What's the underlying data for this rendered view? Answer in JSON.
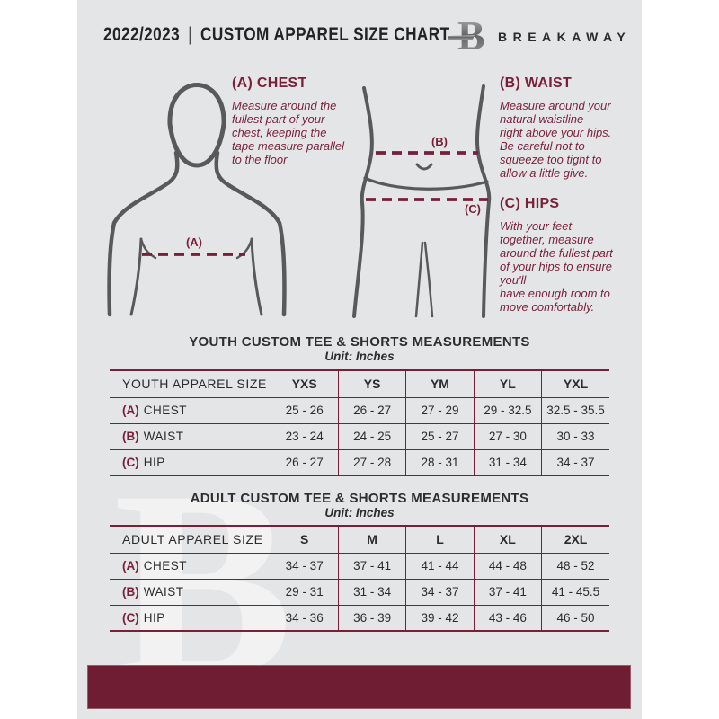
{
  "header": {
    "year": "2022/2023",
    "separator": "|",
    "title": "CUSTOM APPAREL SIZE CHART",
    "brand": "BREAKAWAY",
    "logo_letter": "B"
  },
  "instructions": {
    "chest": {
      "heading": "(A) CHEST",
      "body": "Measure around the\nfullest part of your\nchest, keeping the\ntape measure parallel\nto the floor"
    },
    "waist": {
      "heading": "(B) WAIST",
      "body": "Measure around your\nnatural waistline –\nright above your hips.\nBe careful not to\nsqueeze too tight to\nallow a little give."
    },
    "hips": {
      "heading": "(C) HIPS",
      "body": "With your feet\ntogether, measure\naround the fullest part\nof your hips to ensure\nyou'll\nhave enough room to\nmove comfortably."
    },
    "label_a": "(A)",
    "label_b": "(B)",
    "label_c": "(C)"
  },
  "youth_table": {
    "title": "YOUTH CUSTOM TEE & SHORTS MEASUREMENTS",
    "unit": "Unit: Inches",
    "header": [
      "YOUTH APPAREL SIZE",
      "YXS",
      "YS",
      "YM",
      "YL",
      "YXL"
    ],
    "rows": [
      {
        "prefix": "(A)",
        "label": "CHEST",
        "values": [
          "25 - 26",
          "26 - 27",
          "27 - 29",
          "29 - 32.5",
          "32.5 - 35.5"
        ]
      },
      {
        "prefix": "(B)",
        "label": "WAIST",
        "values": [
          "23 - 24",
          "24 - 25",
          "25 - 27",
          "27 - 30",
          "30 - 33"
        ]
      },
      {
        "prefix": "(C)",
        "label": "HIP",
        "values": [
          "26 - 27",
          "27 - 28",
          "28 - 31",
          "31 - 34",
          "34 - 37"
        ]
      }
    ]
  },
  "adult_table": {
    "title": "ADULT CUSTOM TEE & SHORTS MEASUREMENTS",
    "unit": "Unit: Inches",
    "header": [
      "ADULT APPAREL SIZE",
      "S",
      "M",
      "L",
      "XL",
      "2XL"
    ],
    "rows": [
      {
        "prefix": "(A)",
        "label": "CHEST",
        "values": [
          "34 - 37",
          "37 - 41",
          "41 - 44",
          "44 - 48",
          "48 - 52"
        ]
      },
      {
        "prefix": "(B)",
        "label": "WAIST",
        "values": [
          "29 - 31",
          "31 - 34",
          "34 - 37",
          "37 - 41",
          "41 - 45.5"
        ]
      },
      {
        "prefix": "(C)",
        "label": "HIP",
        "values": [
          "34 - 36",
          "36 - 39",
          "39 - 42",
          "43 - 46",
          "46 - 50"
        ]
      }
    ]
  },
  "watermark": {
    "letter": "B"
  },
  "colors": {
    "accent_maroon": "#7a1f38",
    "footer_bar": "#6f1d33",
    "page_background": "#e4e5e7",
    "figure_line_gray": "#58595b",
    "text_dark": "#2b2b2c"
  }
}
